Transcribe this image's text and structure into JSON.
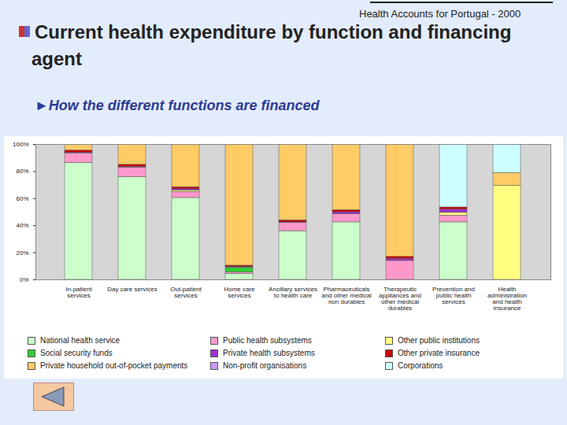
{
  "chart_data": {
    "type": "bar",
    "stacked": true,
    "annotations": [
      "Health Accounts for Portugal - 2000"
    ],
    "title": "Current health expenditure by function and financing agent",
    "subtitle": "►How the different functions are financed",
    "categories": [
      "In-patient\nservices",
      "Day care services",
      "Out-patient\nservices",
      "Home care\nservices",
      "Ancillary services\nto health care",
      "Pharmaceuticals\nand other medical\nnon durables",
      "Therapeutic\nappliances and\nother medical\ndurables",
      "Prevention and\npublic health\nservices",
      "Health\nadministration\nand health\ninsurance"
    ],
    "series": [
      {
        "name": "National health service",
        "color": "#ccffcc",
        "values": [
          86.5,
          76,
          60.5,
          4.5,
          36,
          42.5,
          0,
          42.5,
          0
        ]
      },
      {
        "name": "Public health subsystems",
        "color": "#ff99cc",
        "values": [
          7,
          7,
          4.5,
          1,
          6,
          6,
          14,
          5,
          0
        ]
      },
      {
        "name": "Other public institutions",
        "color": "#ffff80",
        "values": [
          0,
          0,
          1,
          0,
          0,
          0,
          0,
          2,
          69.5
        ]
      },
      {
        "name": "Social security funds",
        "color": "#33cc33",
        "values": [
          0,
          0,
          0,
          3.5,
          0,
          0,
          0,
          0,
          0
        ]
      },
      {
        "name": "Private health subsystems",
        "color": "#9933cc",
        "values": [
          0.5,
          0.5,
          1,
          0.5,
          0.5,
          1.5,
          1.5,
          2.5,
          0
        ]
      },
      {
        "name": "Other private insurance",
        "color": "#cc0000",
        "values": [
          1.5,
          1.5,
          1.5,
          1,
          1.5,
          1.5,
          1.5,
          1.5,
          0
        ]
      },
      {
        "name": "Private household out-of-pocket payments",
        "color": "#ffcc66",
        "values": [
          4.5,
          15,
          31.5,
          89.5,
          56,
          48.5,
          83,
          0,
          9.5
        ]
      },
      {
        "name": "Non-profit organisations",
        "color": "#cc99ff",
        "values": [
          0,
          0,
          0,
          0,
          0,
          0,
          0,
          0,
          0
        ]
      },
      {
        "name": "Corporations",
        "color": "#ccffff",
        "values": [
          0,
          0,
          0,
          0,
          0,
          0,
          0,
          46.5,
          21
        ]
      }
    ],
    "ylim": [
      0,
      100
    ],
    "yticks": [
      {
        "value": 0,
        "label": "0%"
      },
      {
        "value": 20,
        "label": "20%"
      },
      {
        "value": 40,
        "label": "40%"
      },
      {
        "value": 60,
        "label": "60%"
      },
      {
        "value": 80,
        "label": "80%"
      },
      {
        "value": 100,
        "label": "100%"
      }
    ],
    "grid": false,
    "legend": "bottom"
  }
}
